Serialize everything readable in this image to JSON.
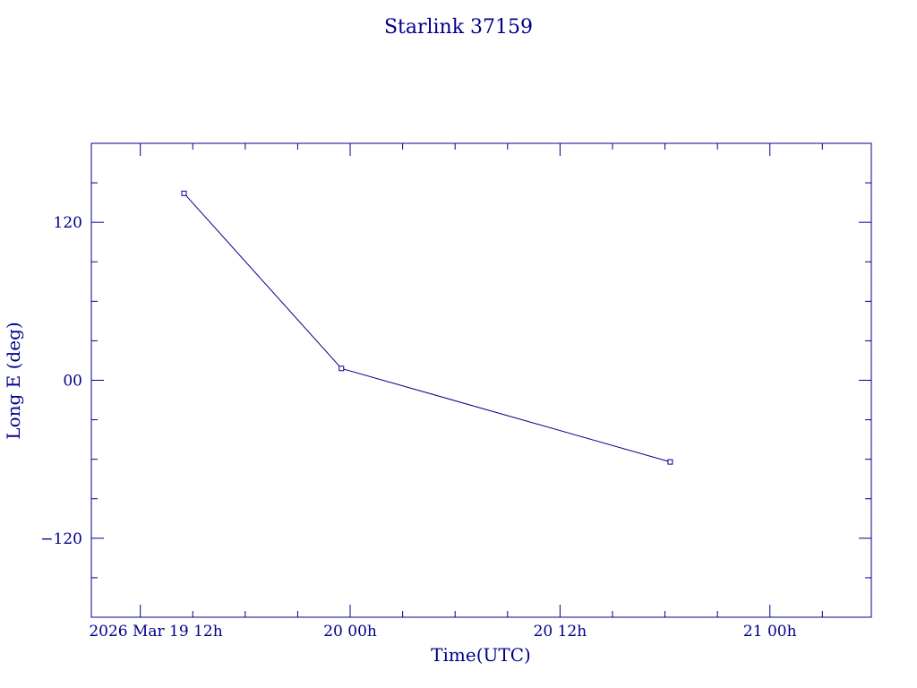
{
  "chart_data": {
    "type": "line",
    "title": "Starlink 37159",
    "xlabel": "Time(UTC)",
    "ylabel": "Long E (deg)",
    "x_unit": "hours",
    "xlim": [
      -2.8,
      41.8
    ],
    "ylim": [
      -180,
      180
    ],
    "y_major_ticks": [
      -120,
      0,
      120
    ],
    "y_tick_labels": [
      "−120",
      "00",
      "120"
    ],
    "y_minor_step": 30,
    "x_major_ticks": [
      0,
      12,
      24,
      36
    ],
    "x_tick_labels": [
      "2026 Mar 19  12h",
      "20  00h",
      "20  12h",
      "21  00h"
    ],
    "x_minor_step": 3,
    "grid": false,
    "series": [
      {
        "x": [
          2.5,
          11.5,
          30.3
        ],
        "y": [
          142,
          9,
          -62
        ]
      }
    ]
  }
}
